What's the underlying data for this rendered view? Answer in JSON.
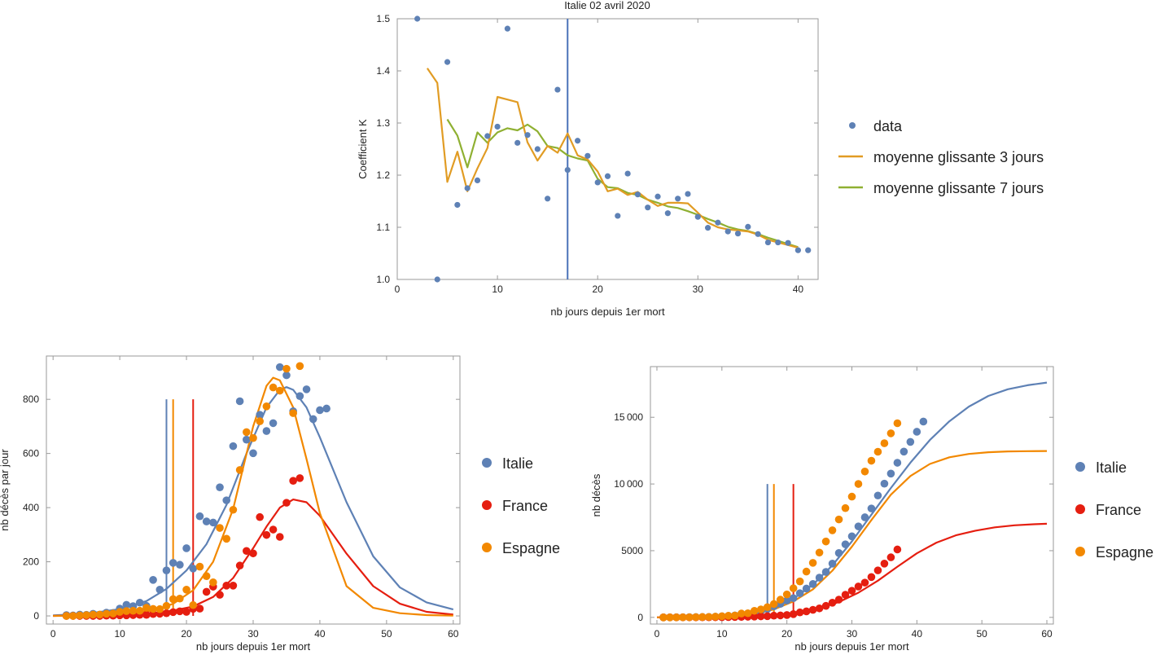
{
  "chart_data": [
    {
      "type": "scatter",
      "title": "Italie 02 avril 2020",
      "xlabel": "nb jours depuis 1er mort",
      "ylabel": "Coefficient K",
      "xlim": [
        0,
        42
      ],
      "ylim": [
        1.0,
        1.5
      ],
      "xticks": [
        0,
        10,
        20,
        30,
        40
      ],
      "xtick_labels": [
        "0",
        "10",
        "20",
        "30",
        "40"
      ],
      "yticks": [
        1.0,
        1.1,
        1.2,
        1.3,
        1.4,
        1.5
      ],
      "ytick_labels": [
        "1.0",
        "1.1",
        "1.2",
        "1.3",
        "1.4",
        "1.5"
      ],
      "vline": 17,
      "legend": [
        "data",
        "moyenne glissante 3 jours",
        "moyenne glissante 7 jours"
      ],
      "colors": {
        "data": "#5e81b5",
        "ma3": "#e19c24",
        "ma7": "#8fb032",
        "vline": "#4a72b8"
      },
      "series": [
        {
          "name": "data",
          "kind": "scatter",
          "x": [
            2,
            4,
            5,
            6,
            7,
            8,
            9,
            10,
            11,
            12,
            13,
            14,
            15,
            16,
            17,
            18,
            19,
            20,
            21,
            22,
            23,
            24,
            25,
            26,
            27,
            28,
            29,
            30,
            31,
            32,
            33,
            34,
            35,
            36,
            37,
            38,
            39,
            40,
            41
          ],
          "y": [
            1.5,
            1.0,
            1.417,
            1.143,
            1.175,
            1.19,
            1.275,
            1.293,
            1.481,
            1.262,
            1.277,
            1.25,
            1.155,
            1.364,
            1.21,
            1.266,
            1.237,
            1.186,
            1.198,
            1.122,
            1.203,
            1.163,
            1.138,
            1.159,
            1.127,
            1.155,
            1.164,
            1.12,
            1.099,
            1.109,
            1.092,
            1.088,
            1.101,
            1.087,
            1.071,
            1.071,
            1.07,
            1.056,
            1.056
          ]
        },
        {
          "name": "moyenne glissante 3 jours",
          "kind": "line",
          "x": [
            3,
            4,
            5,
            6,
            7,
            8,
            9,
            10,
            11,
            12,
            13,
            14,
            15,
            16,
            17,
            18,
            19,
            20,
            21,
            22,
            23,
            24,
            25,
            26,
            27,
            28,
            29,
            30,
            31,
            32,
            33,
            34,
            35,
            36,
            37,
            38,
            39,
            40
          ],
          "y": [
            1.405,
            1.377,
            1.187,
            1.245,
            1.169,
            1.213,
            1.252,
            1.35,
            1.345,
            1.34,
            1.263,
            1.228,
            1.256,
            1.243,
            1.28,
            1.238,
            1.23,
            1.207,
            1.169,
            1.174,
            1.162,
            1.168,
            1.153,
            1.141,
            1.147,
            1.147,
            1.146,
            1.128,
            1.109,
            1.1,
            1.096,
            1.094,
            1.092,
            1.086,
            1.076,
            1.071,
            1.066,
            1.061
          ]
        },
        {
          "name": "moyenne glissante 7 jours",
          "kind": "line",
          "x": [
            5,
            6,
            7,
            8,
            9,
            10,
            11,
            12,
            13,
            14,
            15,
            16,
            17,
            18,
            19,
            20,
            21,
            22,
            23,
            24,
            25,
            26,
            27,
            28,
            29,
            30,
            31,
            32,
            33,
            34,
            35,
            36,
            37,
            38,
            39,
            40
          ],
          "y": [
            1.307,
            1.276,
            1.215,
            1.282,
            1.262,
            1.282,
            1.29,
            1.286,
            1.297,
            1.284,
            1.256,
            1.252,
            1.238,
            1.232,
            1.228,
            1.193,
            1.177,
            1.175,
            1.166,
            1.162,
            1.153,
            1.147,
            1.14,
            1.137,
            1.131,
            1.124,
            1.116,
            1.109,
            1.101,
            1.096,
            1.093,
            1.087,
            1.08,
            1.074,
            1.068,
            1.062
          ]
        }
      ]
    },
    {
      "type": "scatter",
      "title": "",
      "xlabel": "nb jours depuis 1er mort",
      "ylabel": "nb décès  par jour",
      "xlim": [
        -1,
        61
      ],
      "ylim": [
        -30,
        960
      ],
      "xticks": [
        0,
        10,
        20,
        30,
        40,
        50,
        60
      ],
      "xtick_labels": [
        "0",
        "10",
        "20",
        "30",
        "40",
        "50",
        "60"
      ],
      "yticks": [
        0,
        200,
        400,
        600,
        800
      ],
      "ytick_labels": [
        "0",
        "200",
        "400",
        "600",
        "800"
      ],
      "vlines": [
        {
          "x": 17,
          "y": 800,
          "series": "Italie"
        },
        {
          "x": 18,
          "y": 800,
          "series": "Espagne"
        },
        {
          "x": 21,
          "y": 800,
          "series": "France"
        }
      ],
      "legend": [
        "Italie",
        "France",
        "Espagne"
      ],
      "series": [
        {
          "name": "Italie",
          "color": "#5e81b5",
          "x": [
            2,
            3,
            4,
            5,
            6,
            7,
            8,
            9,
            10,
            11,
            12,
            13,
            14,
            15,
            16,
            17,
            18,
            19,
            20,
            21,
            22,
            23,
            24,
            25,
            26,
            27,
            28,
            29,
            30,
            31,
            32,
            33,
            34,
            35,
            36,
            37,
            38,
            39,
            40,
            41
          ],
          "y": [
            3,
            2,
            5,
            4,
            8,
            5,
            12,
            11,
            27,
            41,
            36,
            49,
            37,
            133,
            97,
            168,
            196,
            189,
            250,
            175,
            368,
            349,
            345,
            475,
            427,
            627,
            793,
            651,
            601,
            743,
            683,
            712,
            919,
            889,
            756,
            812,
            837,
            727,
            760,
            766
          ],
          "curve_x": [
            0,
            5,
            10,
            14,
            17,
            20,
            23,
            26,
            29,
            32,
            34,
            35,
            36,
            38,
            40,
            44,
            48,
            52,
            56,
            60
          ],
          "curve_y": [
            2,
            8,
            25,
            55,
            100,
            168,
            265,
            410,
            600,
            770,
            835,
            845,
            835,
            770,
            660,
            420,
            220,
            105,
            50,
            24
          ]
        },
        {
          "name": "France",
          "color": "#e51e10",
          "x": [
            2,
            3,
            4,
            5,
            6,
            7,
            8,
            9,
            10,
            11,
            12,
            13,
            14,
            15,
            16,
            17,
            18,
            19,
            20,
            21,
            22,
            23,
            24,
            25,
            26,
            27,
            28,
            29,
            30,
            31,
            32,
            33,
            34,
            35,
            36,
            37
          ],
          "y": [
            0,
            0,
            0,
            0,
            0,
            0,
            1,
            1,
            2,
            2,
            3,
            4,
            4,
            7,
            8,
            10,
            14,
            17,
            15,
            26,
            27,
            89,
            108,
            78,
            112,
            112,
            186,
            240,
            231,
            365,
            299,
            319,
            292,
            418,
            499,
            509
          ],
          "curve_x": [
            0,
            10,
            15,
            18,
            21,
            24,
            27,
            30,
            32,
            34,
            36,
            38,
            40,
            44,
            48,
            52,
            56,
            60
          ],
          "curve_y": [
            0,
            3,
            10,
            20,
            35,
            70,
            140,
            250,
            330,
            400,
            430,
            420,
            370,
            230,
            110,
            45,
            15,
            5
          ]
        },
        {
          "name": "Espagne",
          "color": "#f28800",
          "x": [
            2,
            3,
            4,
            5,
            6,
            7,
            8,
            9,
            10,
            11,
            12,
            13,
            14,
            15,
            16,
            17,
            18,
            19,
            20,
            21,
            22,
            23,
            24,
            25,
            26,
            27,
            28,
            29,
            30,
            31,
            32,
            33,
            34,
            35,
            36,
            37
          ],
          "y": [
            0,
            0,
            2,
            3,
            5,
            5,
            8,
            9,
            15,
            18,
            19,
            19,
            30,
            26,
            25,
            37,
            62,
            64,
            97,
            40,
            182,
            147,
            124,
            325,
            285,
            392,
            539,
            679,
            657,
            719,
            774,
            844,
            832,
            913,
            749,
            923
          ],
          "curve_x": [
            0,
            10,
            15,
            18,
            21,
            24,
            27,
            30,
            32,
            33,
            34,
            36,
            38,
            40,
            44,
            48,
            52,
            56,
            60
          ],
          "curve_y": [
            0,
            5,
            20,
            45,
            95,
            200,
            395,
            700,
            850,
            880,
            870,
            770,
            580,
            380,
            110,
            30,
            10,
            3,
            1
          ]
        }
      ]
    },
    {
      "type": "scatter",
      "title": "",
      "xlabel": "nb jours depuis 1er mort",
      "ylabel": "nb décès",
      "xlim": [
        -1,
        61
      ],
      "ylim": [
        -500,
        18800
      ],
      "xticks": [
        0,
        10,
        20,
        30,
        40,
        50,
        60
      ],
      "xtick_labels": [
        "0",
        "10",
        "20",
        "30",
        "40",
        "50",
        "60"
      ],
      "yticks": [
        0,
        5000,
        10000,
        15000
      ],
      "ytick_labels": [
        "0",
        "5000",
        "10 000",
        "15 000"
      ],
      "vlines": [
        {
          "x": 17,
          "y": 10000,
          "series": "Italie"
        },
        {
          "x": 18,
          "y": 10000,
          "series": "Espagne"
        },
        {
          "x": 21,
          "y": 10000,
          "series": "France"
        }
      ],
      "legend": [
        "Italie",
        "France",
        "Espagne"
      ],
      "series": [
        {
          "name": "Italie",
          "color": "#5e81b5",
          "x": [
            1,
            2,
            3,
            4,
            5,
            6,
            7,
            8,
            9,
            10,
            11,
            12,
            13,
            14,
            15,
            16,
            17,
            18,
            19,
            20,
            21,
            22,
            23,
            24,
            25,
            26,
            27,
            28,
            29,
            30,
            31,
            32,
            33,
            34,
            35,
            36,
            37,
            38,
            39,
            40,
            41
          ],
          "y": [
            1,
            3,
            7,
            12,
            17,
            21,
            29,
            34,
            52,
            79,
            107,
            148,
            197,
            233,
            366,
            463,
            631,
            827,
            1016,
            1266,
            1441,
            1809,
            2158,
            2503,
            2978,
            3405,
            4032,
            4825,
            5476,
            6077,
            6820,
            7503,
            8165,
            9134,
            10023,
            10779,
            11591,
            12428,
            13155,
            13915,
            14681
          ],
          "curve_x": [
            0,
            5,
            10,
            15,
            18,
            21,
            24,
            27,
            30,
            33,
            36,
            39,
            42,
            45,
            48,
            51,
            54,
            57,
            60
          ],
          "curve_y": [
            0,
            15,
            70,
            300,
            700,
            1400,
            2450,
            3900,
            5700,
            7700,
            9700,
            11600,
            13300,
            14700,
            15800,
            16600,
            17100,
            17400,
            17600
          ]
        },
        {
          "name": "France",
          "color": "#e51e10",
          "x": [
            1,
            2,
            3,
            4,
            5,
            6,
            7,
            8,
            9,
            10,
            11,
            12,
            13,
            14,
            15,
            16,
            17,
            18,
            19,
            20,
            21,
            22,
            23,
            24,
            25,
            26,
            27,
            28,
            29,
            30,
            31,
            32,
            33,
            34,
            35,
            36,
            37
          ],
          "y": [
            1,
            2,
            2,
            2,
            2,
            3,
            4,
            7,
            9,
            11,
            19,
            30,
            33,
            48,
            61,
            79,
            91,
            127,
            148,
            175,
            244,
            372,
            450,
            562,
            674,
            860,
            1100,
            1331,
            1696,
            1995,
            2314,
            2606,
            3024,
            3523,
            4032,
            4503,
            5091
          ],
          "curve_x": [
            0,
            10,
            15,
            20,
            25,
            28,
            31,
            34,
            37,
            40,
            43,
            46,
            49,
            52,
            55,
            58,
            60
          ],
          "curve_y": [
            0,
            20,
            90,
            250,
            680,
            1150,
            1850,
            2750,
            3800,
            4800,
            5600,
            6150,
            6500,
            6750,
            6900,
            6980,
            7020
          ]
        },
        {
          "name": "Espagne",
          "color": "#f28800",
          "x": [
            1,
            2,
            3,
            4,
            5,
            6,
            7,
            8,
            9,
            10,
            11,
            12,
            13,
            14,
            15,
            16,
            17,
            18,
            19,
            20,
            21,
            22,
            23,
            24,
            25,
            26,
            27,
            28,
            29,
            30,
            31,
            32,
            33,
            34,
            35,
            36,
            37
          ],
          "y": [
            1,
            1,
            3,
            5,
            10,
            17,
            28,
            35,
            54,
            84,
            120,
            136,
            288,
            309,
            491,
            598,
            767,
            1002,
            1326,
            1720,
            2182,
            2696,
            3434,
            4089,
            4858,
            5690,
            6528,
            7340,
            8189,
            9053,
            10003,
            10935,
            11744,
            12418,
            13055,
            13798,
            14555
          ],
          "curve_x": [
            0,
            10,
            15,
            18,
            21,
            24,
            27,
            30,
            33,
            36,
            39,
            42,
            45,
            48,
            51,
            54,
            57,
            60
          ],
          "curve_y": [
            0,
            60,
            250,
            600,
            1200,
            2100,
            3500,
            5300,
            7300,
            9200,
            10600,
            11500,
            12000,
            12250,
            12380,
            12440,
            12460,
            12470
          ]
        }
      ]
    }
  ]
}
